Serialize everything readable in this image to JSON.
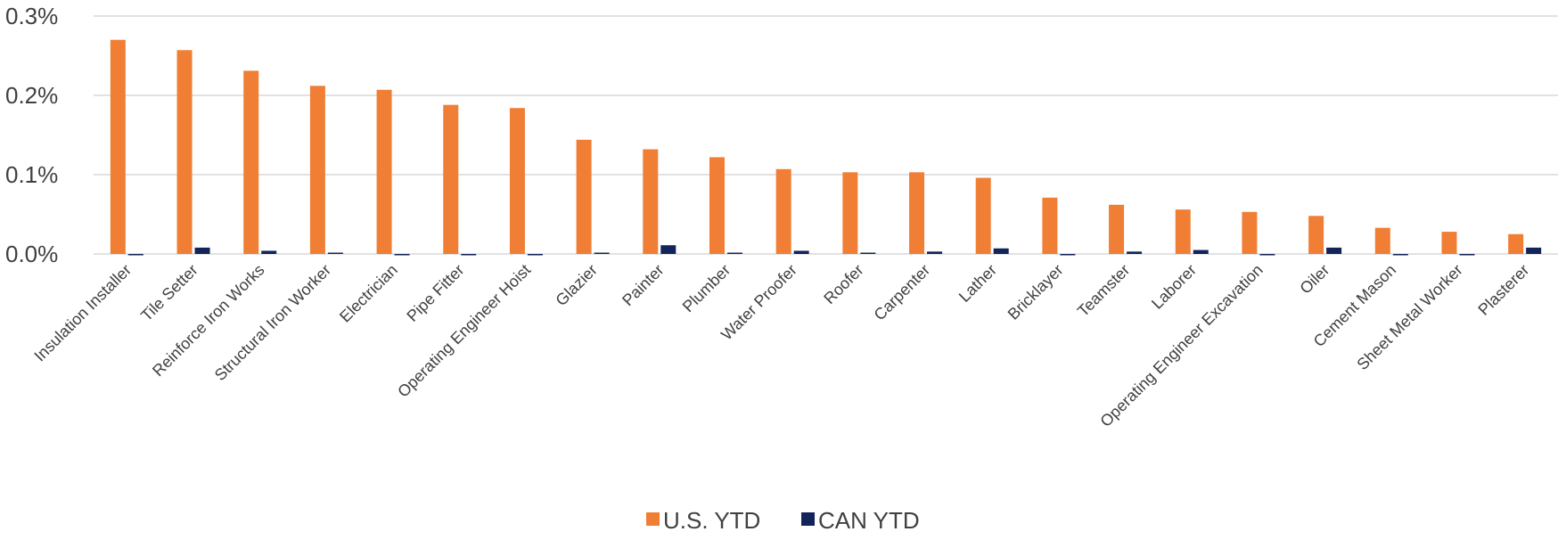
{
  "chart_data": {
    "type": "bar",
    "categories": [
      "Insulation Installer",
      "Tile Setter",
      "Reinforce Iron Works",
      "Structural Iron Worker",
      "Electrician",
      "Pipe Fitter",
      "Operating Engineer Hoist",
      "Glazier",
      "Painter",
      "Plumber",
      "Water Proofer",
      "Roofer",
      "Carpenter",
      "Lather",
      "Bricklayer",
      "Teamster",
      "Laborer",
      "Operating Engineer Excavation",
      "Oiler",
      "Cement Mason",
      "Sheet Metal Worker",
      "Plasterer"
    ],
    "series": [
      {
        "name": "U.S. YTD",
        "color": "#f07f35",
        "values": [
          0.27,
          0.257,
          0.231,
          0.212,
          0.207,
          0.188,
          0.184,
          0.144,
          0.132,
          0.122,
          0.107,
          0.103,
          0.103,
          0.096,
          0.071,
          0.062,
          0.056,
          0.053,
          0.048,
          0.033,
          0.028,
          0.025
        ]
      },
      {
        "name": "CAN YTD",
        "color": "#13245a",
        "values": [
          -0.001,
          0.008,
          0.004,
          0,
          -0.001,
          -0.001,
          -0.001,
          0,
          0.011,
          0.001,
          0.004,
          0.001,
          0.003,
          0.007,
          -0.001,
          0.003,
          0.005,
          -0.001,
          0.008,
          -0.001,
          -0.001,
          0.008
        ]
      }
    ],
    "ylim": [
      0,
      0.3
    ],
    "yticks": [
      0,
      0.1,
      0.2,
      0.3
    ],
    "ytick_labels": [
      "0.0%",
      "0.1%",
      "0.2%",
      "0.3%"
    ],
    "grid": true,
    "legend_position": "bottom",
    "title": "",
    "xlabel": "",
    "ylabel": ""
  }
}
